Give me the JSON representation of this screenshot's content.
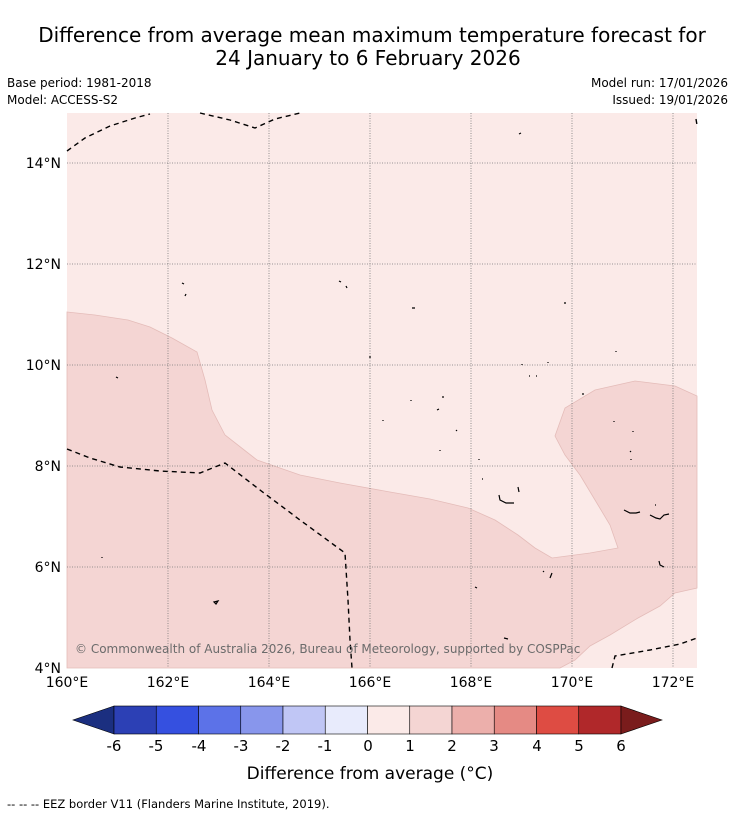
{
  "header": {
    "title_line1": "Difference from average mean maximum temperature forecast for",
    "title_line2": "24 January to 6 February 2026",
    "base_period": "Base period: 1981-2018",
    "model": "Model: ACCESS-S2",
    "model_run": "Model run: 17/01/2026",
    "issued": "Issued: 19/01/2026"
  },
  "map": {
    "lat_labels": [
      "14°N",
      "12°N",
      "10°N",
      "8°N",
      "6°N",
      "4°N"
    ],
    "lon_labels": [
      "160°E",
      "162°E",
      "164°E",
      "166°E",
      "168°E",
      "170°E",
      "172°E"
    ],
    "copyright": "© Commonwealth of Australia 2026, Bureau of Meteorology, supported by COSPPac",
    "colors": {
      "anomaly_0_1": "#fbeae8",
      "anomaly_1_2": "#f4d5d3"
    }
  },
  "colorbar": {
    "title": "Difference from average (°C)",
    "ticks": [
      "-6",
      "-5",
      "-4",
      "-3",
      "-2",
      "-1",
      "0",
      "1",
      "2",
      "3",
      "4",
      "5",
      "6"
    ],
    "colors": [
      "#1b2f80",
      "#2c40b5",
      "#3550e0",
      "#5c72e8",
      "#8896ec",
      "#c0c6f5",
      "#e8ebfc",
      "#fbeae8",
      "#f4d5d3",
      "#ecafab",
      "#e58a84",
      "#de4c43",
      "#b0282a",
      "#7a1c1c"
    ]
  },
  "footer": {
    "legend": "--  --  -- EEZ border V11 (Flanders Marine Institute, 2019)."
  }
}
